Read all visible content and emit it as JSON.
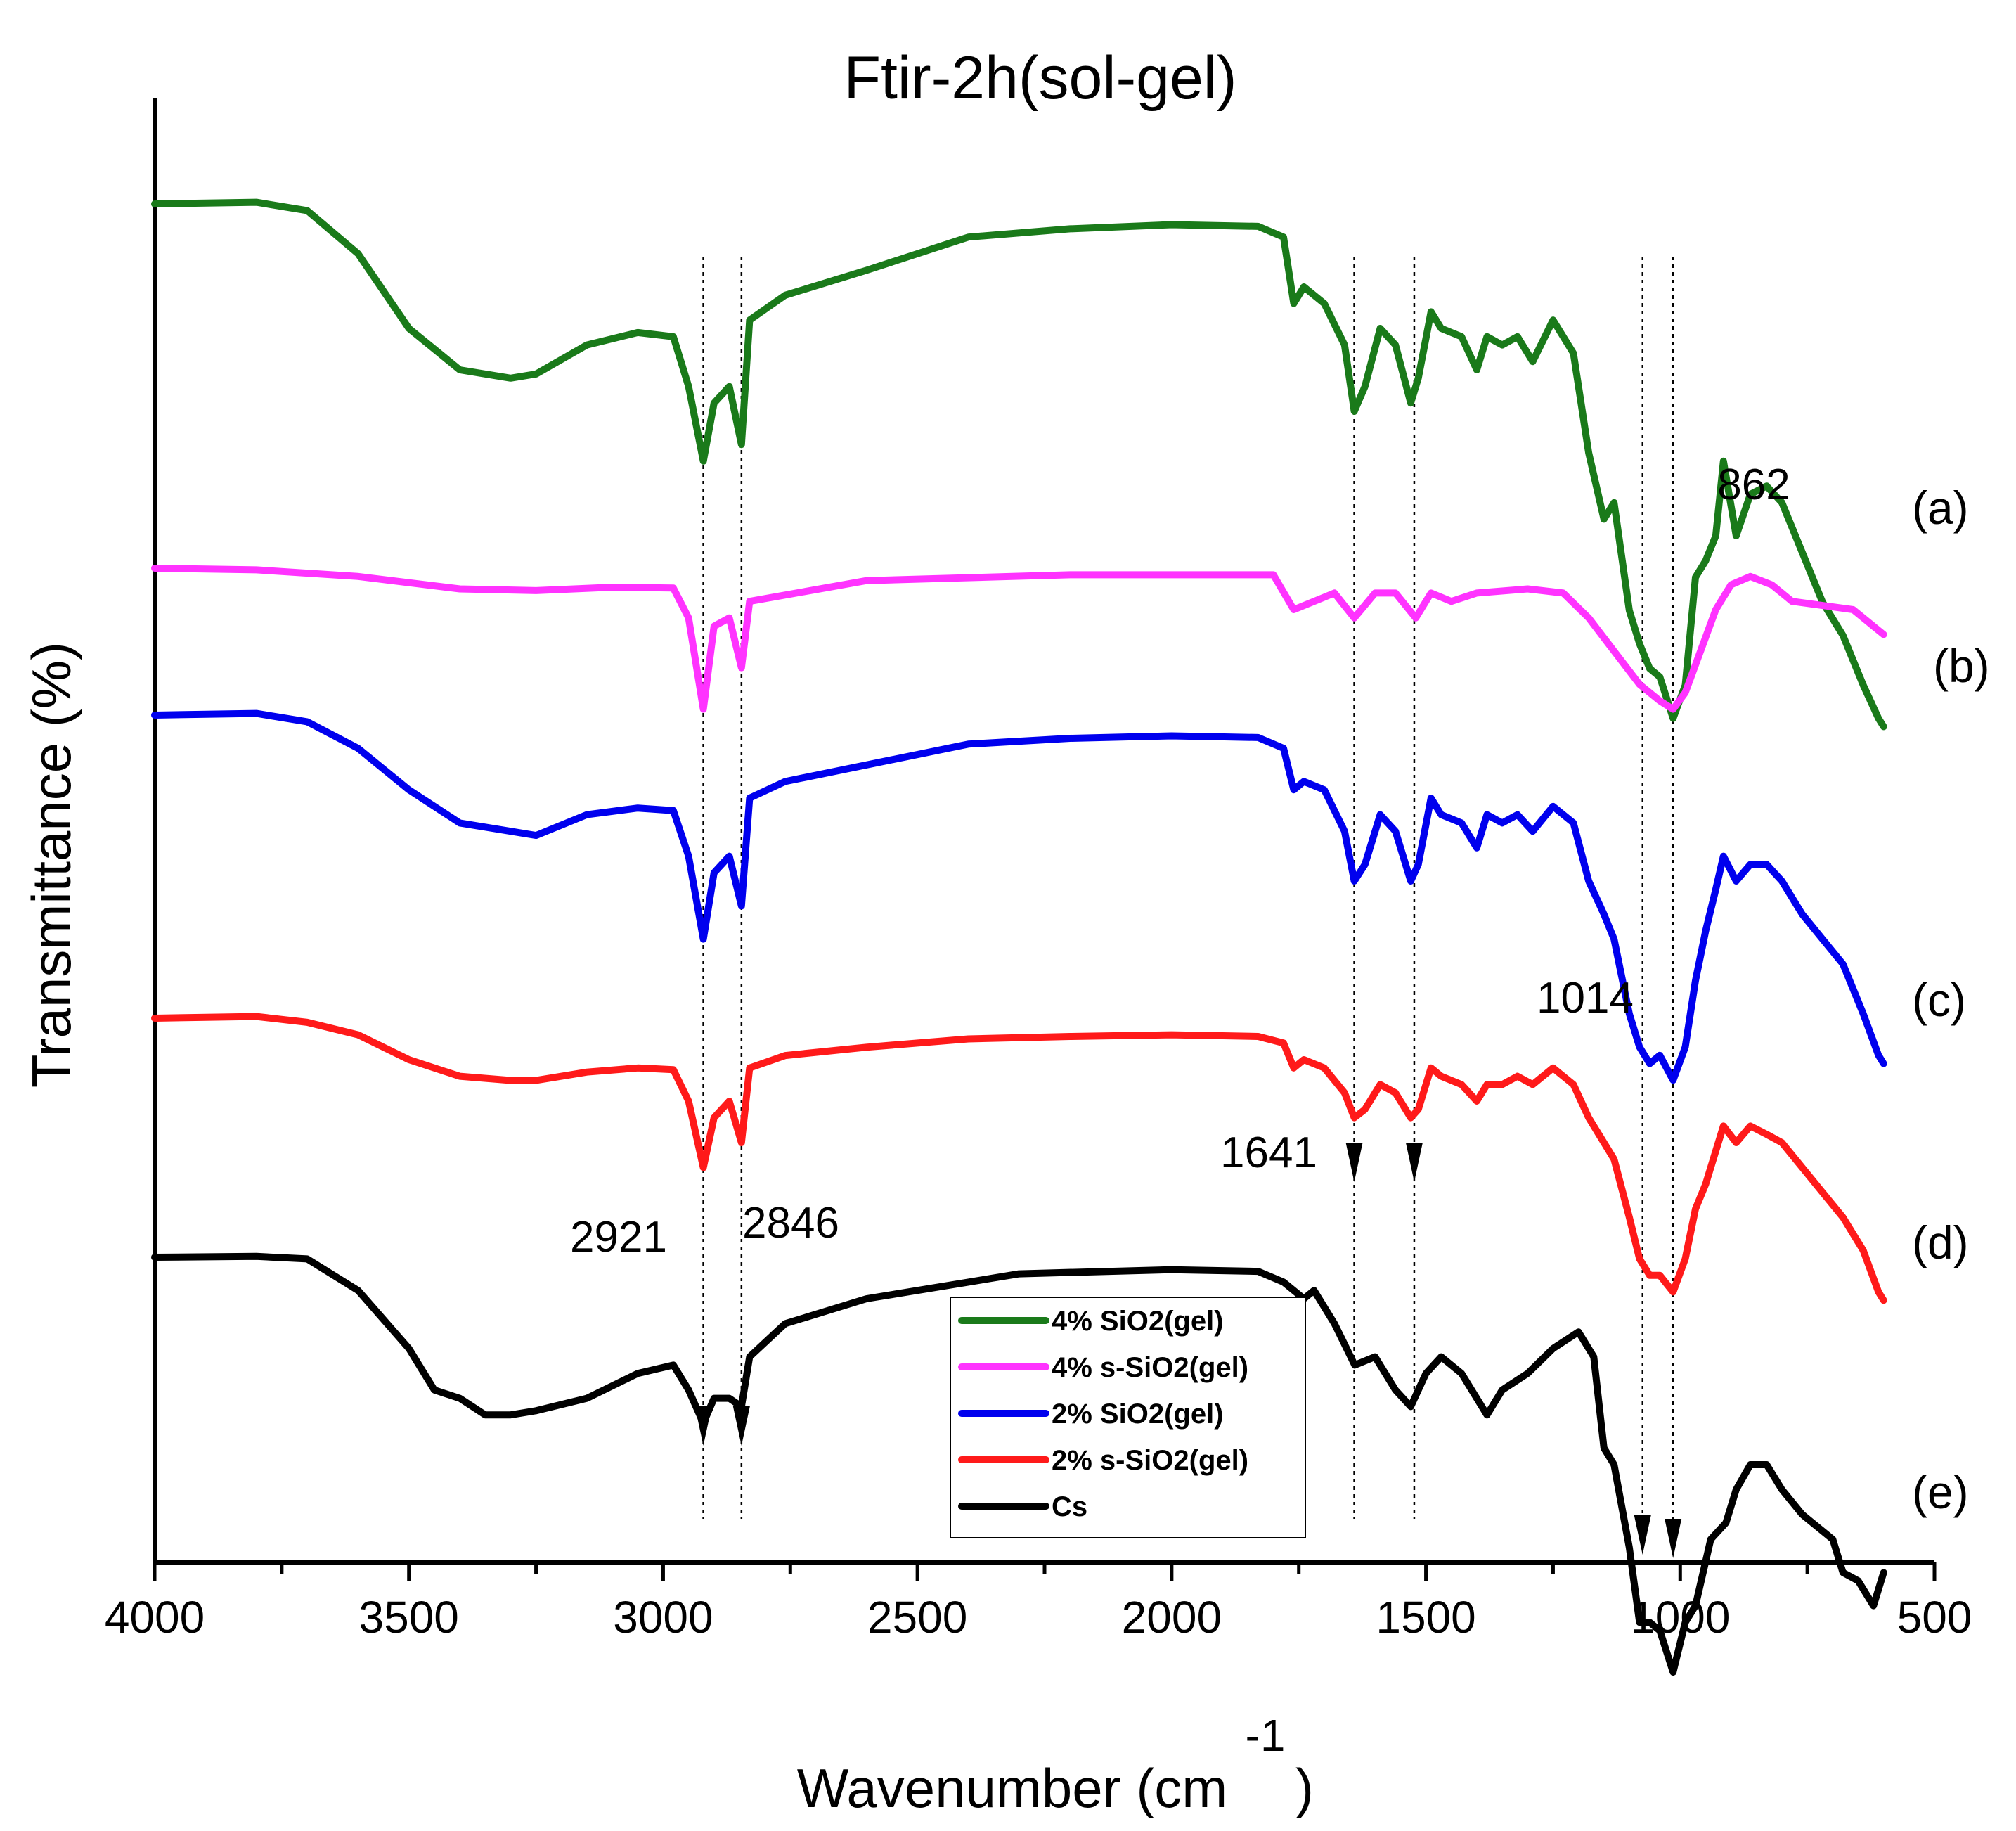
{
  "chart_data": {
    "type": "line",
    "title": "Ftir-2h(sol-gel)",
    "xlabel": "Wavenumber (cm",
    "xlabel_superscript": "-1",
    "xlabel_suffix": ")",
    "ylabel": "Transmittance (%)",
    "xlim": [
      4000,
      500
    ],
    "x_ticks": [
      4000,
      3500,
      3000,
      2500,
      2000,
      1500,
      1000,
      500
    ],
    "y_axis_ticks_shown": false,
    "grid": false,
    "legend_position": "bottom-center",
    "legend_entries": [
      "4% SiO2(gel)",
      "4% s-SiO2(gel)",
      "2% SiO2(gel)",
      "2% s-SiO2(gel)",
      "Cs"
    ],
    "colors": {
      "4% SiO2(gel)": "#1a7a1a",
      "4% s-SiO2(gel)": "#ff33ff",
      "2% SiO2(gel)": "#0000ee",
      "2% s-SiO2(gel)": "#ff1a1a",
      "Cs": "#000000"
    },
    "units_note": "y values are relative transmittance, offset per trace",
    "series": [
      {
        "name": "4% SiO2(gel)",
        "label": "(a)",
        "points": [
          [
            4000,
            100
          ],
          [
            3800,
            100.2
          ],
          [
            3700,
            99.2
          ],
          [
            3600,
            94
          ],
          [
            3500,
            85
          ],
          [
            3400,
            80
          ],
          [
            3300,
            79
          ],
          [
            3250,
            79.5
          ],
          [
            3150,
            83
          ],
          [
            3050,
            84.5
          ],
          [
            2980,
            84
          ],
          [
            2950,
            78
          ],
          [
            2921,
            69
          ],
          [
            2900,
            76
          ],
          [
            2870,
            78
          ],
          [
            2846,
            71
          ],
          [
            2830,
            86
          ],
          [
            2760,
            89
          ],
          [
            2600,
            92
          ],
          [
            2400,
            96
          ],
          [
            2200,
            97
          ],
          [
            2000,
            97.5
          ],
          [
            1830,
            97.3
          ],
          [
            1780,
            96
          ],
          [
            1760,
            88
          ],
          [
            1740,
            90
          ],
          [
            1700,
            88
          ],
          [
            1660,
            83
          ],
          [
            1641,
            75
          ],
          [
            1620,
            78
          ],
          [
            1590,
            85
          ],
          [
            1560,
            83
          ],
          [
            1530,
            76
          ],
          [
            1515,
            79
          ],
          [
            1490,
            87
          ],
          [
            1470,
            85
          ],
          [
            1430,
            84
          ],
          [
            1400,
            80
          ],
          [
            1380,
            84
          ],
          [
            1350,
            83
          ],
          [
            1320,
            84
          ],
          [
            1290,
            81
          ],
          [
            1250,
            86
          ],
          [
            1210,
            82
          ],
          [
            1180,
            70
          ],
          [
            1150,
            62
          ],
          [
            1130,
            64
          ],
          [
            1100,
            51
          ],
          [
            1080,
            47
          ],
          [
            1060,
            44
          ],
          [
            1040,
            43
          ],
          [
            1014,
            38
          ],
          [
            990,
            42
          ],
          [
            970,
            55
          ],
          [
            950,
            57
          ],
          [
            930,
            60
          ],
          [
            915,
            69
          ],
          [
            890,
            60
          ],
          [
            862,
            65
          ],
          [
            830,
            66
          ],
          [
            800,
            64
          ],
          [
            760,
            58
          ],
          [
            720,
            52
          ],
          [
            680,
            48
          ],
          [
            640,
            42
          ],
          [
            610,
            38
          ],
          [
            600,
            37
          ]
        ]
      },
      {
        "name": "4% s-SiO2(gel)",
        "label": "(b)",
        "points": [
          [
            4000,
            100
          ],
          [
            3800,
            99.8
          ],
          [
            3600,
            99
          ],
          [
            3400,
            97.5
          ],
          [
            3250,
            97.3
          ],
          [
            3100,
            97.7
          ],
          [
            2980,
            97.6
          ],
          [
            2950,
            94
          ],
          [
            2921,
            83
          ],
          [
            2900,
            93
          ],
          [
            2870,
            94
          ],
          [
            2846,
            88
          ],
          [
            2830,
            96
          ],
          [
            2600,
            98.5
          ],
          [
            2200,
            99.2
          ],
          [
            2000,
            99.2
          ],
          [
            1800,
            99.2
          ],
          [
            1760,
            95
          ],
          [
            1720,
            96
          ],
          [
            1680,
            97
          ],
          [
            1641,
            94
          ],
          [
            1600,
            97
          ],
          [
            1560,
            97
          ],
          [
            1520,
            94
          ],
          [
            1490,
            97
          ],
          [
            1450,
            96
          ],
          [
            1400,
            97
          ],
          [
            1300,
            97.5
          ],
          [
            1230,
            97
          ],
          [
            1180,
            94
          ],
          [
            1130,
            90
          ],
          [
            1080,
            86
          ],
          [
            1040,
            84
          ],
          [
            1014,
            83
          ],
          [
            990,
            85
          ],
          [
            960,
            90
          ],
          [
            930,
            95
          ],
          [
            900,
            98
          ],
          [
            862,
            99
          ],
          [
            820,
            98
          ],
          [
            780,
            96
          ],
          [
            720,
            95.5
          ],
          [
            660,
            95
          ],
          [
            620,
            93
          ],
          [
            600,
            92
          ]
        ]
      },
      {
        "name": "2% SiO2(gel)",
        "label": "(c)",
        "points": [
          [
            4000,
            100
          ],
          [
            3800,
            100.2
          ],
          [
            3700,
            99.2
          ],
          [
            3600,
            96
          ],
          [
            3500,
            91
          ],
          [
            3400,
            87
          ],
          [
            3300,
            86
          ],
          [
            3250,
            85.5
          ],
          [
            3150,
            88
          ],
          [
            3050,
            88.8
          ],
          [
            2980,
            88.5
          ],
          [
            2950,
            83
          ],
          [
            2921,
            73
          ],
          [
            2900,
            81
          ],
          [
            2870,
            83
          ],
          [
            2846,
            77
          ],
          [
            2830,
            90
          ],
          [
            2760,
            92
          ],
          [
            2600,
            94
          ],
          [
            2400,
            96.5
          ],
          [
            2200,
            97.2
          ],
          [
            2000,
            97.5
          ],
          [
            1830,
            97.3
          ],
          [
            1780,
            96
          ],
          [
            1760,
            91
          ],
          [
            1740,
            92
          ],
          [
            1700,
            91
          ],
          [
            1660,
            86
          ],
          [
            1641,
            80
          ],
          [
            1620,
            82
          ],
          [
            1590,
            88
          ],
          [
            1560,
            86
          ],
          [
            1530,
            80
          ],
          [
            1515,
            82
          ],
          [
            1490,
            90
          ],
          [
            1470,
            88
          ],
          [
            1430,
            87
          ],
          [
            1400,
            84
          ],
          [
            1380,
            88
          ],
          [
            1350,
            87
          ],
          [
            1320,
            88
          ],
          [
            1290,
            86
          ],
          [
            1250,
            89
          ],
          [
            1210,
            87
          ],
          [
            1180,
            80
          ],
          [
            1150,
            76
          ],
          [
            1130,
            73
          ],
          [
            1100,
            64
          ],
          [
            1080,
            60
          ],
          [
            1060,
            58
          ],
          [
            1040,
            59
          ],
          [
            1014,
            56
          ],
          [
            990,
            60
          ],
          [
            970,
            68
          ],
          [
            950,
            74
          ],
          [
            930,
            79
          ],
          [
            915,
            83
          ],
          [
            890,
            80
          ],
          [
            862,
            82
          ],
          [
            830,
            82
          ],
          [
            800,
            80
          ],
          [
            760,
            76
          ],
          [
            720,
            73
          ],
          [
            680,
            70
          ],
          [
            640,
            64
          ],
          [
            610,
            59
          ],
          [
            600,
            58
          ]
        ]
      },
      {
        "name": "2% s-SiO2(gel)",
        "label": "(d)",
        "points": [
          [
            4000,
            100
          ],
          [
            3800,
            100.2
          ],
          [
            3700,
            99.5
          ],
          [
            3600,
            98
          ],
          [
            3500,
            95
          ],
          [
            3400,
            93
          ],
          [
            3300,
            92.5
          ],
          [
            3250,
            92.5
          ],
          [
            3150,
            93.5
          ],
          [
            3050,
            94
          ],
          [
            2980,
            93.8
          ],
          [
            2950,
            90
          ],
          [
            2921,
            82
          ],
          [
            2900,
            88
          ],
          [
            2870,
            90
          ],
          [
            2846,
            85
          ],
          [
            2830,
            94
          ],
          [
            2760,
            95.5
          ],
          [
            2600,
            96.5
          ],
          [
            2400,
            97.5
          ],
          [
            2200,
            97.8
          ],
          [
            2000,
            98
          ],
          [
            1830,
            97.8
          ],
          [
            1780,
            97
          ],
          [
            1760,
            94
          ],
          [
            1740,
            95
          ],
          [
            1700,
            94
          ],
          [
            1660,
            91
          ],
          [
            1641,
            88
          ],
          [
            1620,
            89
          ],
          [
            1590,
            92
          ],
          [
            1560,
            91
          ],
          [
            1530,
            88
          ],
          [
            1515,
            89
          ],
          [
            1490,
            94
          ],
          [
            1470,
            93
          ],
          [
            1430,
            92
          ],
          [
            1400,
            90
          ],
          [
            1380,
            92
          ],
          [
            1350,
            92
          ],
          [
            1320,
            93
          ],
          [
            1290,
            92
          ],
          [
            1250,
            94
          ],
          [
            1210,
            92
          ],
          [
            1180,
            88
          ],
          [
            1150,
            85
          ],
          [
            1130,
            83
          ],
          [
            1100,
            76
          ],
          [
            1080,
            71
          ],
          [
            1060,
            69
          ],
          [
            1040,
            69
          ],
          [
            1014,
            67
          ],
          [
            990,
            71
          ],
          [
            970,
            77
          ],
          [
            950,
            80
          ],
          [
            930,
            84
          ],
          [
            915,
            87
          ],
          [
            890,
            85
          ],
          [
            862,
            87
          ],
          [
            830,
            86
          ],
          [
            800,
            85
          ],
          [
            760,
            82
          ],
          [
            720,
            79
          ],
          [
            680,
            76
          ],
          [
            640,
            72
          ],
          [
            610,
            67
          ],
          [
            600,
            66
          ]
        ]
      },
      {
        "name": "Cs",
        "label": "(e)",
        "points": [
          [
            4000,
            100
          ],
          [
            3800,
            100.1
          ],
          [
            3700,
            99.8
          ],
          [
            3600,
            96
          ],
          [
            3500,
            89
          ],
          [
            3450,
            84
          ],
          [
            3400,
            83
          ],
          [
            3350,
            81
          ],
          [
            3300,
            81
          ],
          [
            3250,
            81.5
          ],
          [
            3150,
            83
          ],
          [
            3050,
            86
          ],
          [
            2980,
            87
          ],
          [
            2950,
            84
          ],
          [
            2921,
            80
          ],
          [
            2900,
            83
          ],
          [
            2870,
            83
          ],
          [
            2846,
            82
          ],
          [
            2830,
            88
          ],
          [
            2760,
            92
          ],
          [
            2600,
            95
          ],
          [
            2400,
            97
          ],
          [
            2300,
            98
          ],
          [
            2000,
            98.5
          ],
          [
            1830,
            98.3
          ],
          [
            1780,
            97
          ],
          [
            1740,
            95
          ],
          [
            1720,
            96
          ],
          [
            1680,
            92
          ],
          [
            1640,
            87
          ],
          [
            1600,
            88
          ],
          [
            1560,
            84
          ],
          [
            1530,
            82
          ],
          [
            1500,
            86
          ],
          [
            1470,
            88
          ],
          [
            1430,
            86
          ],
          [
            1400,
            83
          ],
          [
            1380,
            81
          ],
          [
            1350,
            84
          ],
          [
            1300,
            86
          ],
          [
            1250,
            89
          ],
          [
            1200,
            91
          ],
          [
            1170,
            88
          ],
          [
            1150,
            77
          ],
          [
            1130,
            75
          ],
          [
            1100,
            65
          ],
          [
            1080,
            56
          ],
          [
            1060,
            56
          ],
          [
            1040,
            55
          ],
          [
            1014,
            50
          ],
          [
            990,
            56
          ],
          [
            970,
            58
          ],
          [
            940,
            66
          ],
          [
            910,
            68
          ],
          [
            890,
            72
          ],
          [
            862,
            75
          ],
          [
            830,
            75
          ],
          [
            800,
            72
          ],
          [
            760,
            69
          ],
          [
            720,
            67
          ],
          [
            700,
            66
          ],
          [
            680,
            62
          ],
          [
            650,
            61
          ],
          [
            620,
            58
          ],
          [
            600,
            62
          ]
        ]
      }
    ],
    "annotations": [
      {
        "text": "2921",
        "wavenumber": 2921
      },
      {
        "text": "2846",
        "wavenumber": 2846
      },
      {
        "text": "1641",
        "wavenumber": 1641
      },
      {
        "text": "1014",
        "wavenumber": 1014
      },
      {
        "text": "862",
        "wavenumber": 862
      }
    ],
    "reference_lines": [
      2921,
      2846,
      1641,
      1523,
      1074,
      1014
    ]
  }
}
